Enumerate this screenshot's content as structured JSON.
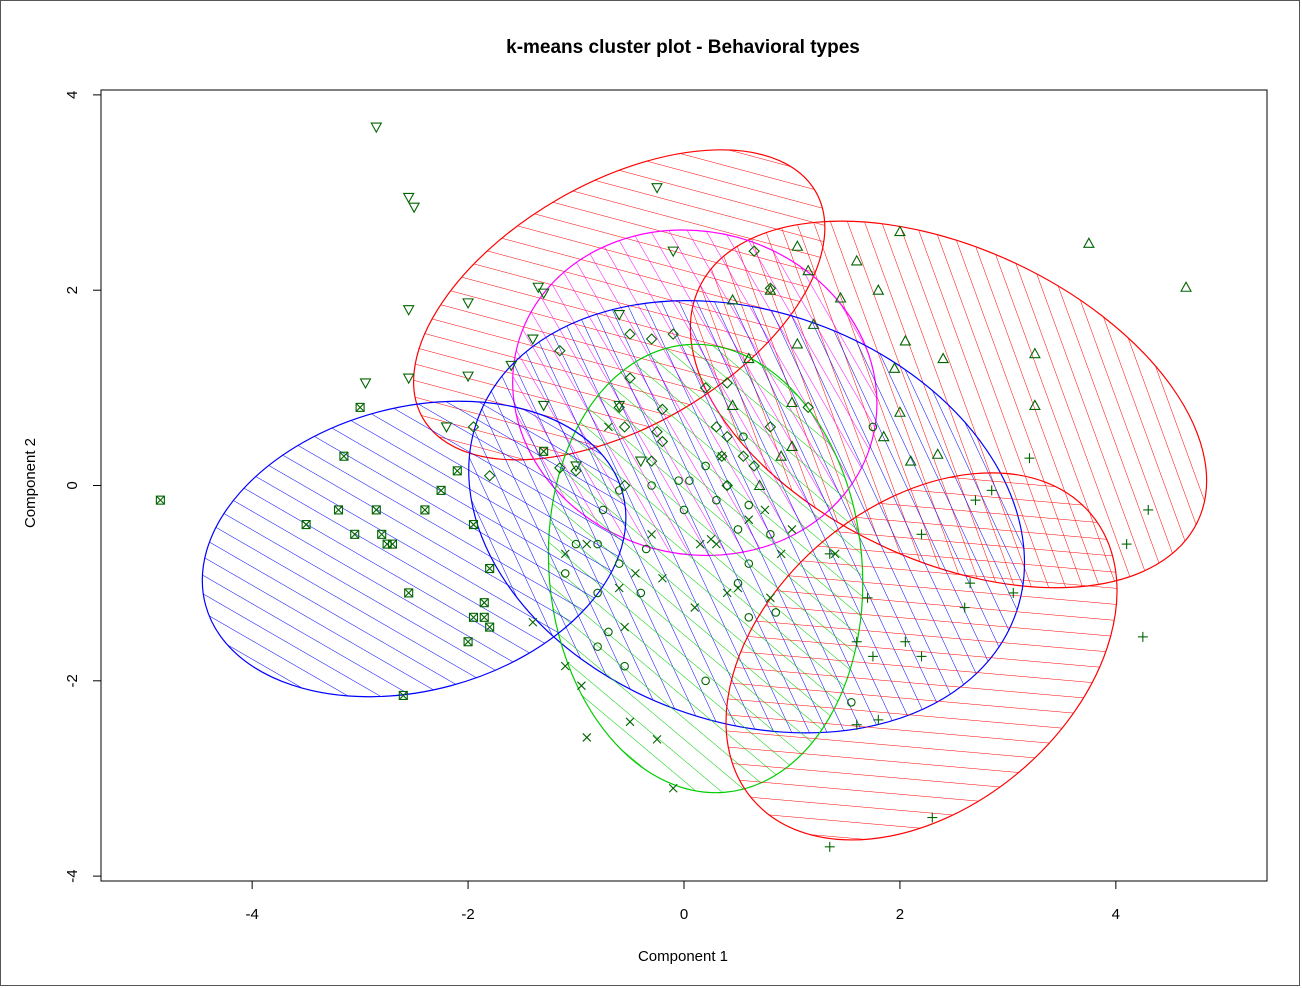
{
  "chart_data": {
    "type": "scatter",
    "title": "k-means cluster plot - Behavioral types",
    "xlabel": "Component 1",
    "ylabel": "Component 2",
    "xlim": [
      -5.4,
      5.4
    ],
    "ylim": [
      -4.05,
      4.05
    ],
    "x_ticks": [
      -4,
      -2,
      0,
      2,
      4
    ],
    "y_ticks": [
      -4,
      -2,
      0,
      2,
      4
    ],
    "x_tick_labels": [
      "-4",
      "-2",
      "0",
      "2",
      "4"
    ],
    "y_tick_labels": [
      "-4",
      "-2",
      "0",
      "2",
      "4"
    ],
    "grid": false,
    "point_color": "#006400",
    "clusters": [
      {
        "marker": "triangle-down",
        "ellipse": {
          "cx": -0.6,
          "cy": 1.85,
          "rx": 2.1,
          "ry": 1.25,
          "angle": -30,
          "color": "#ff0000"
        },
        "points": [
          [
            -2.85,
            3.67
          ],
          [
            -2.55,
            2.95
          ],
          [
            -2.5,
            2.85
          ],
          [
            -0.25,
            3.05
          ],
          [
            -2.55,
            1.8
          ],
          [
            -2.0,
            1.87
          ],
          [
            -1.35,
            2.03
          ],
          [
            -1.3,
            1.97
          ],
          [
            -0.1,
            2.4
          ],
          [
            -2.55,
            1.1
          ],
          [
            -2.95,
            1.05
          ],
          [
            -2.0,
            1.12
          ],
          [
            -1.6,
            1.23
          ],
          [
            -1.4,
            1.5
          ],
          [
            -1.3,
            0.82
          ],
          [
            -2.2,
            0.6
          ],
          [
            -1.0,
            0.2
          ],
          [
            -0.6,
            0.82
          ],
          [
            -0.4,
            0.25
          ],
          [
            -0.6,
            1.75
          ]
        ]
      },
      {
        "marker": "triangle-up",
        "ellipse": {
          "cx": 2.45,
          "cy": 0.83,
          "rx": 2.55,
          "ry": 1.6,
          "angle": 25,
          "color": "#ff0000"
        },
        "points": [
          [
            2.0,
            2.6
          ],
          [
            3.75,
            2.48
          ],
          [
            1.05,
            2.45
          ],
          [
            1.15,
            2.2
          ],
          [
            0.8,
            2.0
          ],
          [
            1.6,
            2.3
          ],
          [
            1.45,
            1.92
          ],
          [
            4.65,
            2.03
          ],
          [
            1.8,
            2.0
          ],
          [
            1.2,
            1.65
          ],
          [
            2.05,
            1.48
          ],
          [
            1.05,
            1.45
          ],
          [
            1.95,
            1.2
          ],
          [
            2.4,
            1.3
          ],
          [
            3.25,
            1.35
          ],
          [
            0.6,
            1.3
          ],
          [
            0.45,
            0.82
          ],
          [
            2.0,
            0.75
          ],
          [
            3.25,
            0.82
          ],
          [
            1.85,
            0.5
          ],
          [
            2.1,
            0.25
          ],
          [
            2.35,
            0.32
          ],
          [
            1.0,
            0.85
          ],
          [
            1.0,
            0.4
          ],
          [
            0.45,
            1.9
          ],
          [
            0.9,
            0.3
          ],
          [
            0.7,
            0.0
          ]
        ]
      },
      {
        "marker": "diamond",
        "ellipse": {
          "cx": 0.1,
          "cy": 0.95,
          "rx": 1.7,
          "ry": 1.65,
          "angle": 15,
          "color": "#ff00ff"
        },
        "points": [
          [
            0.65,
            2.4
          ],
          [
            0.8,
            2.02
          ],
          [
            -0.1,
            1.55
          ],
          [
            -0.3,
            1.5
          ],
          [
            -0.5,
            1.55
          ],
          [
            -1.15,
            1.38
          ],
          [
            0.4,
            1.05
          ],
          [
            0.2,
            1.0
          ],
          [
            -0.5,
            1.1
          ],
          [
            -0.6,
            0.8
          ],
          [
            -0.2,
            0.78
          ],
          [
            0.3,
            0.6
          ],
          [
            0.4,
            0.5
          ],
          [
            -0.55,
            0.6
          ],
          [
            -0.25,
            0.55
          ],
          [
            -0.3,
            0.25
          ],
          [
            0.55,
            0.3
          ],
          [
            0.65,
            0.2
          ],
          [
            -1.0,
            0.15
          ],
          [
            -1.15,
            0.18
          ],
          [
            -0.55,
            0.0
          ],
          [
            0.4,
            0.0
          ],
          [
            0.8,
            0.6
          ],
          [
            -1.8,
            0.1
          ],
          [
            -1.95,
            0.6
          ],
          [
            1.15,
            0.8
          ],
          [
            0.35,
            0.3
          ],
          [
            -0.2,
            0.45
          ]
        ]
      },
      {
        "marker": "x",
        "ellipse": {
          "cx": 0.58,
          "cy": -0.32,
          "rx": 2.65,
          "ry": 2.1,
          "angle": 20,
          "color": "#0000ff"
        },
        "points": [
          [
            -0.7,
            0.6
          ],
          [
            -0.3,
            -0.5
          ],
          [
            -0.45,
            -0.9
          ],
          [
            -1.1,
            -0.7
          ],
          [
            -0.55,
            -1.45
          ],
          [
            -1.4,
            -1.4
          ],
          [
            0.4,
            -1.1
          ],
          [
            0.1,
            -1.25
          ],
          [
            0.25,
            -0.55
          ],
          [
            0.5,
            -1.05
          ],
          [
            0.15,
            -0.6
          ],
          [
            0.3,
            -0.6
          ],
          [
            -0.2,
            -0.95
          ],
          [
            -0.6,
            -1.05
          ],
          [
            -0.9,
            -0.6
          ],
          [
            -0.95,
            -2.05
          ],
          [
            -1.1,
            -1.85
          ],
          [
            -0.9,
            -2.58
          ],
          [
            -0.25,
            -2.6
          ],
          [
            -0.5,
            -2.42
          ],
          [
            -0.1,
            -3.1
          ],
          [
            0.8,
            -1.15
          ],
          [
            0.75,
            -0.25
          ],
          [
            0.6,
            -0.35
          ],
          [
            1.0,
            -0.45
          ],
          [
            0.35,
            0.3
          ],
          [
            0.9,
            -0.7
          ],
          [
            1.4,
            -0.7
          ]
        ]
      },
      {
        "marker": "circle",
        "ellipse": {
          "cx": 0.2,
          "cy": -0.85,
          "rx": 1.45,
          "ry": 2.3,
          "angle": -5,
          "color": "#00cc00"
        },
        "points": [
          [
            -0.3,
            0.0
          ],
          [
            -0.05,
            0.05
          ],
          [
            0.05,
            0.05
          ],
          [
            0.2,
            0.2
          ],
          [
            0.4,
            0.0
          ],
          [
            0.55,
            0.5
          ],
          [
            -0.6,
            -0.05
          ],
          [
            -0.75,
            -0.25
          ],
          [
            -0.8,
            -0.6
          ],
          [
            -0.35,
            -0.65
          ],
          [
            -0.6,
            -0.8
          ],
          [
            -0.4,
            -1.1
          ],
          [
            -0.8,
            -1.1
          ],
          [
            -0.7,
            -1.5
          ],
          [
            0.0,
            -0.25
          ],
          [
            0.3,
            -0.15
          ],
          [
            0.5,
            -0.45
          ],
          [
            0.6,
            -0.2
          ],
          [
            0.8,
            -0.5
          ],
          [
            0.6,
            -0.8
          ],
          [
            0.5,
            -1.0
          ],
          [
            0.85,
            -1.3
          ],
          [
            0.6,
            -1.35
          ],
          [
            -0.55,
            -1.85
          ],
          [
            -0.8,
            -1.65
          ],
          [
            0.2,
            -2.0
          ],
          [
            1.55,
            -2.22
          ],
          [
            1.75,
            0.6
          ],
          [
            -1.0,
            -0.6
          ],
          [
            -1.1,
            -0.9
          ]
        ]
      },
      {
        "marker": "plus",
        "ellipse": {
          "cx": 2.2,
          "cy": -1.75,
          "rx": 2.05,
          "ry": 1.55,
          "angle": -40,
          "color": "#ff0000"
        },
        "points": [
          [
            2.7,
            -0.15
          ],
          [
            2.85,
            -0.05
          ],
          [
            3.2,
            0.28
          ],
          [
            4.3,
            -0.25
          ],
          [
            4.1,
            -0.6
          ],
          [
            2.2,
            -0.5
          ],
          [
            2.65,
            -1.0
          ],
          [
            2.6,
            -1.25
          ],
          [
            3.05,
            -1.1
          ],
          [
            1.7,
            -1.15
          ],
          [
            1.6,
            -1.6
          ],
          [
            1.75,
            -1.75
          ],
          [
            2.05,
            -1.6
          ],
          [
            2.2,
            -1.75
          ],
          [
            1.6,
            -2.45
          ],
          [
            1.8,
            -2.4
          ],
          [
            4.25,
            -1.55
          ],
          [
            2.3,
            -3.4
          ],
          [
            1.35,
            -3.7
          ],
          [
            1.35,
            -0.7
          ]
        ]
      },
      {
        "marker": "boxx",
        "ellipse": {
          "cx": -2.5,
          "cy": -0.65,
          "rx": 2.0,
          "ry": 1.45,
          "angle": -15,
          "color": "#0000ff"
        },
        "points": [
          [
            -4.85,
            -0.15
          ],
          [
            -3.0,
            0.8
          ],
          [
            -3.15,
            0.3
          ],
          [
            -2.1,
            0.15
          ],
          [
            -3.5,
            -0.4
          ],
          [
            -3.2,
            -0.25
          ],
          [
            -2.85,
            -0.25
          ],
          [
            -3.05,
            -0.5
          ],
          [
            -2.8,
            -0.5
          ],
          [
            -2.7,
            -0.6
          ],
          [
            -2.75,
            -0.6
          ],
          [
            -2.4,
            -0.25
          ],
          [
            -2.25,
            -0.05
          ],
          [
            -1.95,
            -0.4
          ],
          [
            -1.8,
            -0.85
          ],
          [
            -2.55,
            -1.1
          ],
          [
            -1.95,
            -1.35
          ],
          [
            -1.85,
            -1.35
          ],
          [
            -1.85,
            -1.2
          ],
          [
            -1.8,
            -1.45
          ],
          [
            -2.0,
            -1.6
          ],
          [
            -2.6,
            -2.15
          ],
          [
            -1.3,
            0.35
          ]
        ]
      }
    ]
  }
}
